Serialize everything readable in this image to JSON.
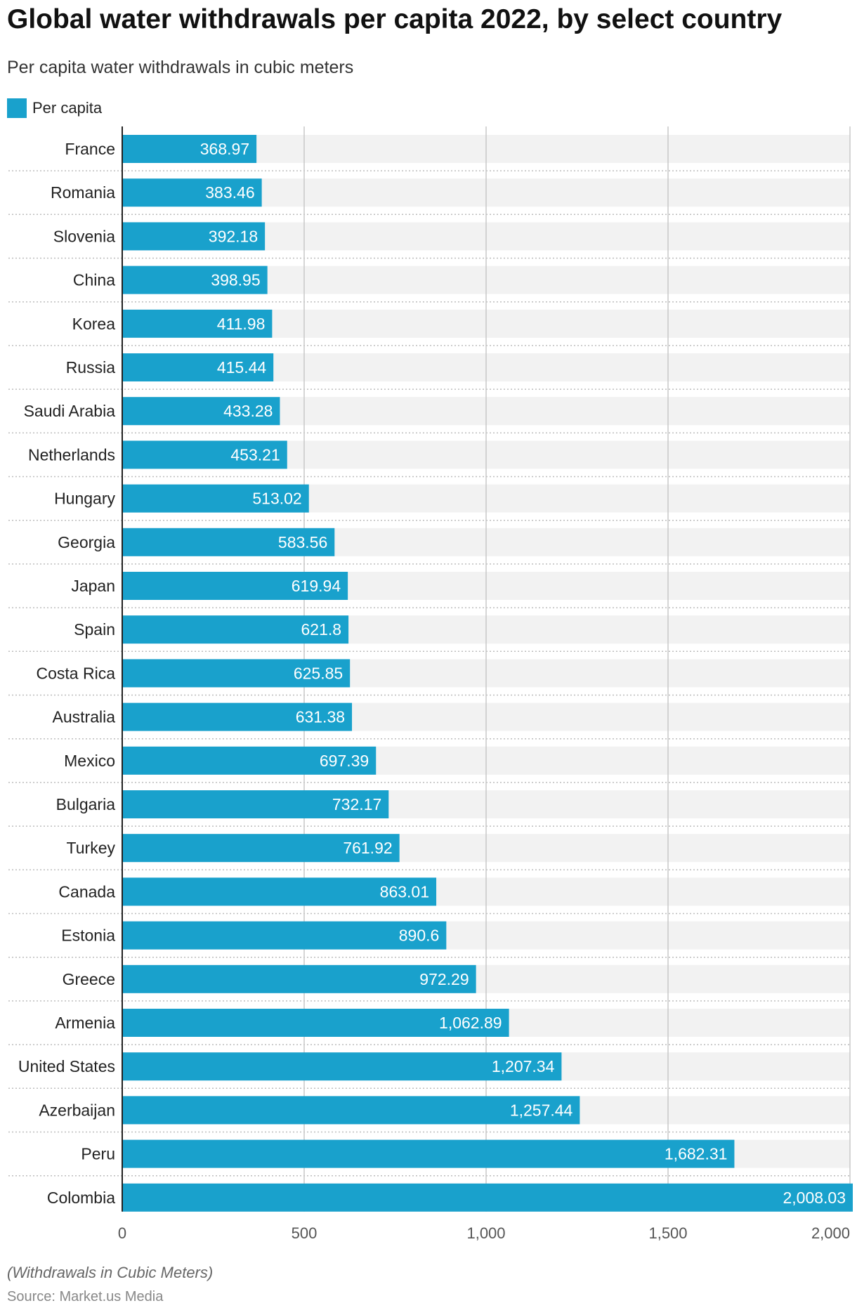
{
  "chart_data": {
    "type": "bar",
    "orientation": "horizontal",
    "title": "Global water withdrawals per capita 2022, by select country",
    "subtitle": "Per capita water withdrawals in cubic meters",
    "legend": [
      {
        "name": "Per capita",
        "color": "#19a1cc"
      }
    ],
    "categories": [
      "France",
      "Romania",
      "Slovenia",
      "China",
      "Korea",
      "Russia",
      "Saudi Arabia",
      "Netherlands",
      "Hungary",
      "Georgia",
      "Japan",
      "Spain",
      "Costa Rica",
      "Australia",
      "Mexico",
      "Bulgaria",
      "Turkey",
      "Canada",
      "Estonia",
      "Greece",
      "Armenia",
      "United States",
      "Azerbaijan",
      "Peru",
      "Colombia"
    ],
    "values": [
      368.97,
      383.46,
      392.18,
      398.95,
      411.98,
      415.44,
      433.28,
      453.21,
      513.02,
      583.56,
      619.94,
      621.8,
      625.85,
      631.38,
      697.39,
      732.17,
      761.92,
      863.01,
      890.6,
      972.29,
      1062.89,
      1207.34,
      1257.44,
      1682.31,
      2008.03
    ],
    "value_labels": [
      "368.97",
      "383.46",
      "392.18",
      "398.95",
      "411.98",
      "415.44",
      "433.28",
      "453.21",
      "513.02",
      "583.56",
      "619.94",
      "621.8",
      "625.85",
      "631.38",
      "697.39",
      "732.17",
      "761.92",
      "863.01",
      "890.6",
      "972.29",
      "1,062.89",
      "1,207.34",
      "1,257.44",
      "1,682.31",
      "2,008.03"
    ],
    "xlim": [
      0,
      2000
    ],
    "xticks": [
      0,
      500,
      1000,
      1500,
      2000
    ],
    "xtick_labels": [
      "0",
      "500",
      "1,000",
      "1,500",
      "2,000"
    ],
    "xlabel": "",
    "ylabel": "",
    "grid": true
  },
  "colors": {
    "bar": "#19a1cc",
    "track": "#f2f2f2",
    "grid": "#c8c8c8",
    "axis": "#222222"
  },
  "footnote": "(Withdrawals in Cubic Meters)",
  "source": "Source: Market.us Media"
}
